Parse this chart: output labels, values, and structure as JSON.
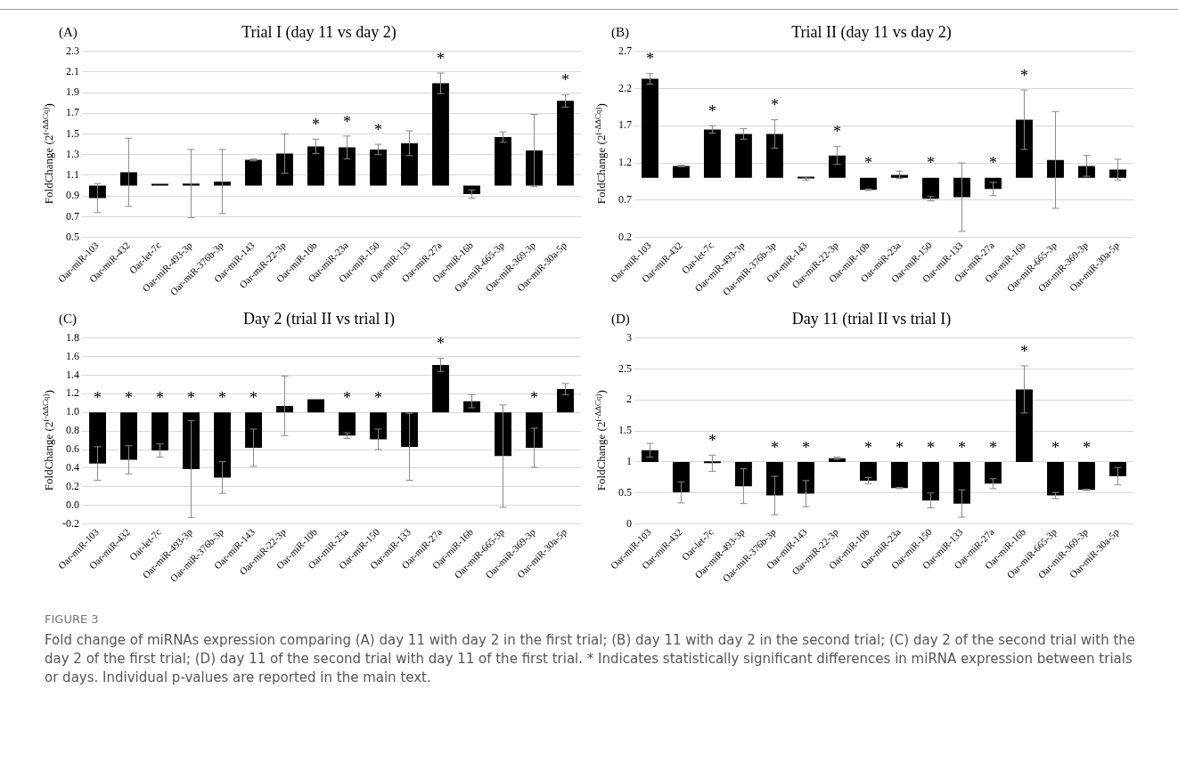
{
  "chart_data": [
    {
      "type": "bar",
      "title": "Trial I (day 11 vs day 2)",
      "ylabel": "FoldChange (2$^{(-ΔΔCq)}$)",
      "categories": [
        "Oar-miR-103",
        "Oar-miR-432",
        "Oar-let-7c",
        "Oar-miR-493-3p",
        "Oar-miR-376b-3p",
        "Oar-miR-143",
        "Oar-miR-22-3p",
        "Oar-miR-10b",
        "Oar-miR-23a",
        "Oar-miR-150",
        "Oar-miR-133",
        "Oar-miR-27a",
        "Oar-miR-16b",
        "Oar-miR-665-3p",
        "Oar-miR-369-3p",
        "Oar-miR-30a-5p"
      ],
      "base": [
        1,
        1,
        1,
        1,
        1,
        1,
        1,
        1,
        1,
        1,
        1,
        1,
        1,
        1,
        1,
        1
      ],
      "values": [
        -0.12,
        0.13,
        0,
        0.02,
        0.04,
        0.25,
        0.31,
        0.38,
        0.37,
        0.35,
        0.41,
        0.99,
        -0.08,
        0.47,
        0.34,
        0.82
      ],
      "errors": [
        0.14,
        0.33,
        null,
        0.33,
        0.31,
        0.01,
        0.19,
        0.07,
        0.11,
        0.05,
        0.12,
        0.1,
        0.04,
        0.05,
        0.35,
        0.06
      ],
      "value_labels": [
        null,
        null,
        null,
        null,
        null,
        null,
        null,
        "*",
        "*",
        "*",
        null,
        "*",
        null,
        null,
        null,
        "*"
      ],
      "color": "#000000",
      "ylim": [
        0.5,
        2.3
      ],
      "yticks": [
        0.5,
        0.7,
        0.9,
        1.1,
        1.3,
        1.5,
        1.7,
        1.9,
        2.1,
        2.3
      ],
      "grid": "y",
      "legend": false,
      "annotations": [
        "(A)"
      ]
    },
    {
      "type": "bar",
      "title": "Trial II (day 11 vs day 2)",
      "ylabel": "FoldChange (2$^{(-ΔΔCq)}$)",
      "categories": [
        "Oar-miR-103",
        "Oar-miR-432",
        "Oar-let-7c",
        "Oar-miR-493-3p",
        "Oar-miR-376b-3p",
        "Oar-miR-143",
        "Oar-miR-22-3p",
        "Oar-miR-10b",
        "Oar-miR-23a",
        "Oar-miR-150",
        "Oar-miR-133",
        "Oar-miR-27a",
        "Oar-miR-16b",
        "Oar-miR-665-3p",
        "Oar-miR-369-3p",
        "Oar-miR-30a-5p"
      ],
      "base": [
        1,
        1,
        1,
        1,
        1,
        1,
        1,
        1,
        1,
        1,
        1,
        1,
        1,
        1,
        1,
        1
      ],
      "values": [
        1.33,
        0.16,
        0.65,
        0.59,
        0.59,
        -0.01,
        0.3,
        -0.16,
        0.04,
        -0.28,
        -0.26,
        -0.15,
        0.78,
        0.24,
        0.16,
        0.11
      ],
      "errors": [
        0.07,
        0.01,
        0.05,
        0.07,
        0.19,
        0.02,
        0.12,
        0.01,
        0.05,
        0.03,
        0.46,
        0.09,
        0.4,
        0.65,
        0.14,
        0.14
      ],
      "value_labels": [
        "*",
        null,
        "*",
        null,
        "*",
        null,
        "*",
        "*",
        null,
        "*",
        null,
        "*",
        "*",
        null,
        null,
        null
      ],
      "color": "#000000",
      "ylim": [
        0.2,
        2.7
      ],
      "yticks": [
        0.2,
        0.7,
        1.2,
        1.7,
        2.2,
        2.7
      ],
      "grid": "y",
      "legend": false,
      "annotations": [
        "(B)"
      ]
    },
    {
      "type": "bar",
      "title": "Day 2 (trial II vs trial I)",
      "ylabel": "FoldChange (2$^{(-ΔΔCq)}$)",
      "categories": [
        "Oar-miR-103",
        "Oar-miR-432",
        "Oar-let-7c",
        "Oar-miR-493-3p",
        "Oar-miR-376b-3p",
        "Oar-miR-143",
        "Oar-miR-22-3p",
        "Oar-miR-10b",
        "Oar-miR-23a",
        "Oar-miR-150",
        "Oar-miR-133",
        "Oar-miR-27a",
        "Oar-miR-16b",
        "Oar-miR-665-3p",
        "Oar-miR-369-3p",
        "Oar-miR-30a-5p"
      ],
      "base": [
        1,
        1,
        1,
        1,
        1,
        1,
        1,
        1,
        1,
        1,
        1,
        1,
        1,
        1,
        1,
        1
      ],
      "values": [
        -0.55,
        -0.51,
        -0.41,
        -0.61,
        -0.7,
        -0.38,
        0.07,
        0.14,
        -0.25,
        -0.29,
        -0.37,
        0.51,
        0.12,
        -0.47,
        -0.38,
        0.25
      ],
      "errors": [
        0.18,
        0.15,
        0.07,
        0.52,
        0.17,
        0.2,
        0.32,
        null,
        0.03,
        0.11,
        0.36,
        0.07,
        0.07,
        0.55,
        0.21,
        0.06
      ],
      "value_labels": [
        "*",
        "*",
        "*",
        "*",
        "*",
        "*",
        null,
        null,
        "*",
        "*",
        null,
        "*",
        null,
        null,
        "*",
        null
      ],
      "color": "#000000",
      "ylim": [
        -0.2,
        1.8
      ],
      "yticks": [
        -0.2,
        {
          "value": 0,
          "label": "0.0"
        },
        0.2,
        0.4,
        0.6,
        0.8,
        {
          "value": 1,
          "label": "1.0"
        },
        1.2,
        1.4,
        1.6,
        1.8
      ],
      "grid": "y",
      "legend": false,
      "annotations": [
        "(C)"
      ]
    },
    {
      "type": "bar",
      "title": "Day 11 (trial II vs trial I)",
      "ylabel": "FoldChange (2$^{(-ΔΔCq)}$)",
      "categories": [
        "Oar-miR-103",
        "Oar-miR-432",
        "Oar-let-7c",
        "Oar-miR-493-3p",
        "Oar-miR-376b-3p",
        "Oar-miR-143",
        "Oar-miR-22-3p",
        "Oar-miR-10b",
        "Oar-miR-23a",
        "Oar-miR-150",
        "Oar-miR-133",
        "Oar-miR-27a",
        "Oar-miR-16b",
        "Oar-miR-665-3p",
        "Oar-miR-369-3p",
        "Oar-miR-30a-5p"
      ],
      "base": [
        1,
        1,
        1,
        1,
        1,
        1,
        1,
        1,
        1,
        1,
        1,
        1,
        1,
        1,
        1,
        1
      ],
      "values": [
        0.19,
        -0.49,
        -0.02,
        -0.39,
        -0.54,
        -0.51,
        0.06,
        -0.3,
        -0.42,
        -0.62,
        -0.67,
        -0.35,
        1.17,
        -0.54,
        -0.45,
        -0.23
      ],
      "errors": [
        0.11,
        0.17,
        0.13,
        0.28,
        0.31,
        0.21,
        0.02,
        0.05,
        0.01,
        0.12,
        0.22,
        0.08,
        0.38,
        0.05,
        0.01,
        0.14
      ],
      "value_labels": [
        null,
        null,
        "*",
        null,
        "*",
        "*",
        null,
        "*",
        "*",
        "*",
        "*",
        "*",
        "*",
        "*",
        "*",
        null
      ],
      "color": "#000000",
      "ylim": [
        0,
        3
      ],
      "yticks": [
        0,
        0.5,
        1,
        1.5,
        2,
        2.5,
        3
      ],
      "grid": "y",
      "legend": false,
      "annotations": [
        "(D)"
      ]
    },
    {
      "type": "other",
      "title": "FIGURE 3",
      "annotations": [
        "Fold change of miRNAs expression comparing (A) day 11 with day 2 in the first trial; (B) day 11 with day 2 in the second trial; (C) day 2 of the second trial with the day 2 of the first trial; (D) day 11 of the second trial with day 11 of the first trial. * Indicates statistically significant differences in miRNA expression between trials or days. Individual p-values are reported in the main text."
      ]
    }
  ]
}
